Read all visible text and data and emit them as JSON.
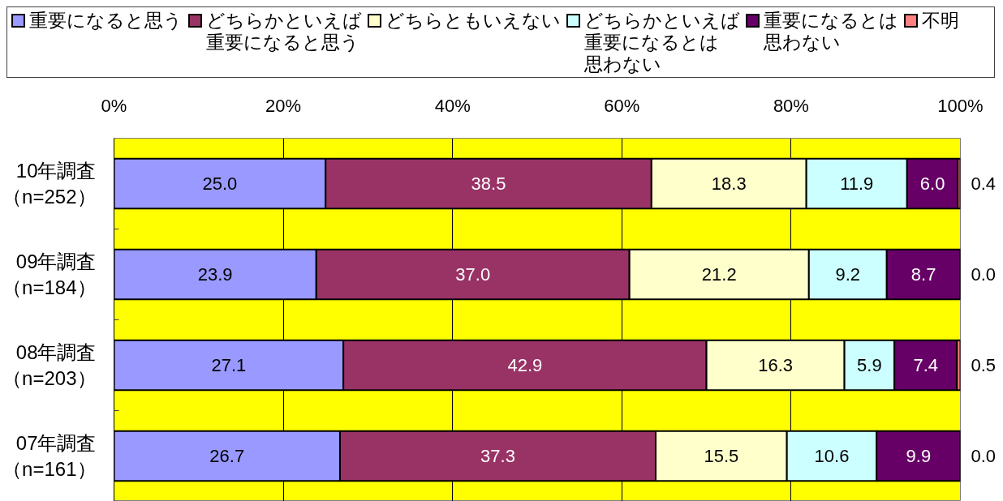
{
  "chart_data": {
    "type": "bar",
    "orientation": "horizontal",
    "stacked": true,
    "categories": [
      "10年調査（n=252）",
      "09年調査（n=184）",
      "08年調査（n=203）",
      "07年調査（n=161）"
    ],
    "series": [
      {
        "name": "重要になると思う",
        "color": "#9999ff",
        "values": [
          25.0,
          23.9,
          27.1,
          26.7
        ],
        "value_labels": [
          "25.0",
          "23.9",
          "27.1",
          "26.7"
        ]
      },
      {
        "name": "どちらかといえば重要になると思う",
        "color": "#993366",
        "values": [
          38.5,
          37.0,
          42.9,
          37.3
        ],
        "value_labels": [
          "38.5",
          "37.0",
          "42.9",
          "37.3"
        ]
      },
      {
        "name": "どちらともいえない",
        "color": "#ffffcc",
        "values": [
          18.3,
          21.2,
          16.3,
          15.5
        ],
        "value_labels": [
          "18.3",
          "21.2",
          "16.3",
          "15.5"
        ]
      },
      {
        "name": "どちらかといえば重要になるとは思わない",
        "color": "#ccffff",
        "values": [
          11.9,
          9.2,
          5.9,
          10.6
        ],
        "value_labels": [
          "11.9",
          "9.2",
          "5.9",
          "10.6"
        ]
      },
      {
        "name": "重要になるとは思わない",
        "color": "#660066",
        "values": [
          6.0,
          8.7,
          7.4,
          9.9
        ],
        "value_labels": [
          "6.0",
          "8.7",
          "7.4",
          "9.9"
        ]
      },
      {
        "name": "不明",
        "color": "#ff8080",
        "values": [
          0.4,
          0.0,
          0.5,
          0.0
        ],
        "value_labels": [
          "0.4",
          "0.0",
          "0.5",
          "0.0"
        ]
      }
    ],
    "xlim": [
      0,
      100
    ],
    "xticks": [
      {
        "value": 0,
        "label": "0%"
      },
      {
        "value": 20,
        "label": "20%"
      },
      {
        "value": 40,
        "label": "40%"
      },
      {
        "value": 60,
        "label": "60%"
      },
      {
        "value": 80,
        "label": "80%"
      },
      {
        "value": 100,
        "label": "100%"
      }
    ],
    "grid": "x",
    "legend": "top"
  }
}
